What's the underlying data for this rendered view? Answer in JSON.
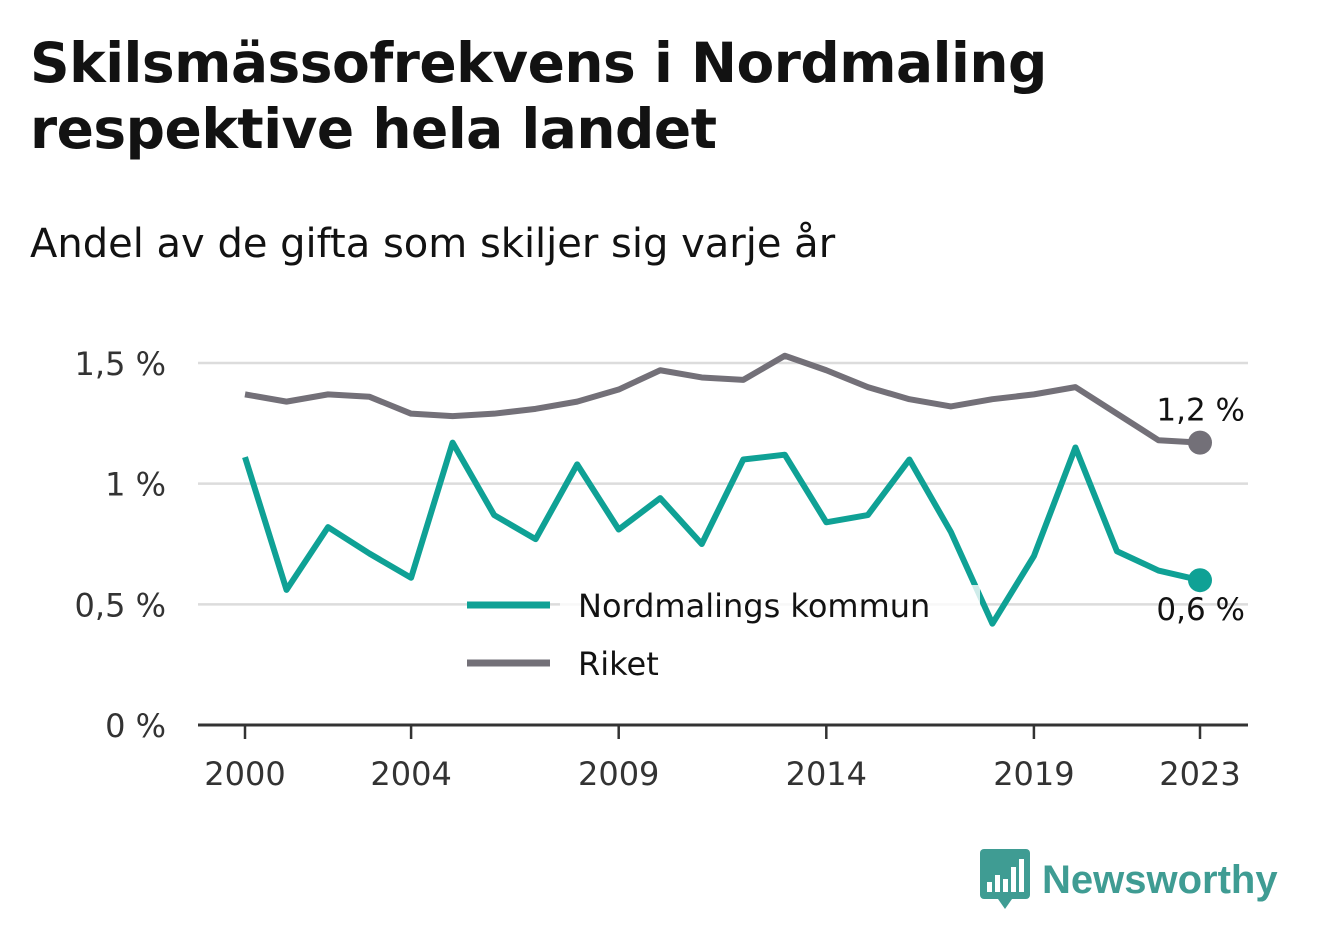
{
  "header": {
    "title": "Skilsmässofrekvens i Nordmaling respektive hela landet",
    "subtitle": "Andel av de gifta som skiljer sig varje år"
  },
  "brand": {
    "name": "Newsworthy",
    "icon": "newsworthy-logo-icon",
    "color": "#3f9c93"
  },
  "chart_data": {
    "type": "line",
    "title": "Skilsmässofrekvens i Nordmaling respektive hela landet",
    "subtitle": "Andel av de gifta som skiljer sig varje år",
    "xlabel": "",
    "ylabel": "",
    "x": [
      2000,
      2001,
      2002,
      2003,
      2004,
      2005,
      2006,
      2007,
      2008,
      2009,
      2010,
      2011,
      2012,
      2013,
      2014,
      2015,
      2016,
      2017,
      2018,
      2019,
      2020,
      2021,
      2022,
      2023
    ],
    "x_ticks": [
      "2000",
      "2004",
      "2009",
      "2014",
      "2019",
      "2023"
    ],
    "y_ticks": [
      "0 %",
      "0,5 %",
      "1 %",
      "1,5 %"
    ],
    "ylim": [
      0,
      1.5
    ],
    "grid": true,
    "legend_position": "bottom-center",
    "series": [
      {
        "name": "Nordmalings kommun",
        "color": "#0fa195",
        "values": [
          1.11,
          0.56,
          0.82,
          0.71,
          0.61,
          1.17,
          0.87,
          0.77,
          1.08,
          0.81,
          0.94,
          0.75,
          1.1,
          1.12,
          0.84,
          0.87,
          1.1,
          0.8,
          0.42,
          0.7,
          1.15,
          0.72,
          0.64,
          0.6
        ],
        "end_label": "0,6 %"
      },
      {
        "name": "Riket",
        "color": "#737078",
        "values": [
          1.37,
          1.34,
          1.37,
          1.36,
          1.29,
          1.28,
          1.29,
          1.31,
          1.34,
          1.39,
          1.47,
          1.44,
          1.43,
          1.53,
          1.47,
          1.4,
          1.35,
          1.32,
          1.35,
          1.37,
          1.4,
          1.29,
          1.18,
          1.17
        ],
        "end_label": "1,2 %"
      }
    ]
  }
}
